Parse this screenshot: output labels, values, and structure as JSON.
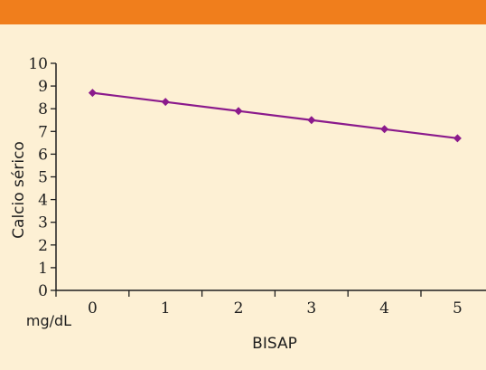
{
  "colors": {
    "header_bar": "#f07e1c",
    "background": "#fdf0d4",
    "series": "#8b1a8c",
    "axis": "#1e1e1e"
  },
  "chart_data": {
    "type": "line",
    "title": "",
    "xlabel": "BISAP",
    "ylabel": "Calcio sérico",
    "y_unit_label": "mg/dL",
    "x": [
      0,
      1,
      2,
      3,
      4,
      5
    ],
    "ylim": [
      0,
      10
    ],
    "y_ticks": [
      0,
      1,
      2,
      3,
      4,
      5,
      6,
      7,
      8,
      9,
      10
    ],
    "grid": false,
    "legend": "none",
    "series": [
      {
        "values": [
          8.7,
          8.3,
          7.9,
          7.5,
          7.1,
          6.7
        ],
        "marker": "diamond"
      }
    ]
  }
}
